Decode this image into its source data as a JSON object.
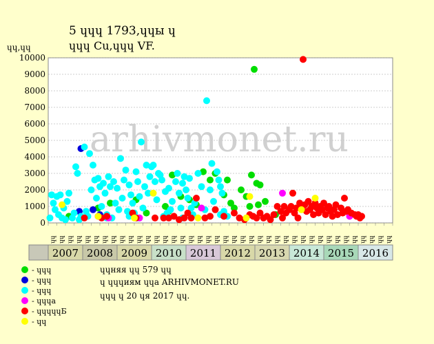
{
  "chart_data": {
    "type": "scatter",
    "title_line1": "5 ɥɥɥ 1793,ɥɥы ɥ",
    "title_line2": "ɥɥɥ Cu,ɥɥɥ VF.",
    "ylabel": "ɥɥ,ɥɥ",
    "ylim": [
      0,
      10000
    ],
    "y_ticks": [
      0,
      1000,
      2000,
      3000,
      4000,
      5000,
      6000,
      7000,
      8000,
      9000,
      10000
    ],
    "grid": "horizontal dotted",
    "watermark": "arhivmonet.ru",
    "years": [
      {
        "label": "2007",
        "color": "#D8D8A8"
      },
      {
        "label": "2008",
        "color": "#C8C8A8"
      },
      {
        "label": "2009",
        "color": "#D8D8A8"
      },
      {
        "label": "2010",
        "color": "#C8E0C8"
      },
      {
        "label": "2011",
        "color": "#D8C8D8"
      },
      {
        "label": "2012",
        "color": "#D8D8A8"
      },
      {
        "label": "2013",
        "color": "#D8D8B0"
      },
      {
        "label": "2014",
        "color": "#C8E8D8"
      },
      {
        "label": "2015",
        "color": "#A8D8B8"
      },
      {
        "label": "2016",
        "color": "#D8E8E8"
      }
    ],
    "quarter_labels": [
      "ɥɥ",
      "ɥɥ",
      "ɥɥ",
      "ɥɥ"
    ],
    "series": [
      {
        "name": "ɥɥɥ",
        "color": "#00DD00",
        "points": [
          [
            2007.6,
            400
          ],
          [
            2008.45,
            900
          ],
          [
            2008.8,
            1200
          ],
          [
            2009.55,
            1400
          ],
          [
            2009.85,
            600
          ],
          [
            2010.4,
            1000
          ],
          [
            2010.6,
            2900
          ],
          [
            2010.85,
            1600
          ],
          [
            2011.3,
            1100
          ],
          [
            2011.5,
            3100
          ],
          [
            2011.7,
            2600
          ],
          [
            2011.85,
            3000
          ],
          [
            2012.1,
            1700
          ],
          [
            2012.2,
            2600
          ],
          [
            2012.3,
            1200
          ],
          [
            2012.4,
            900
          ],
          [
            2012.6,
            2000
          ],
          [
            2012.75,
            1600
          ],
          [
            2012.85,
            1000
          ],
          [
            2012.9,
            2900
          ],
          [
            2013.05,
            2400
          ],
          [
            2013.15,
            2300
          ],
          [
            2013.3,
            1300
          ],
          [
            2013.1,
            1100
          ],
          [
            2012.98,
            9300
          ],
          [
            2013.6,
            500
          ],
          [
            2011.1,
            1400
          ],
          [
            2010.5,
            700
          ]
        ]
      },
      {
        "name": "ɥɥɥ",
        "color": "#0000DD",
        "points": [
          [
            2007.95,
            4500
          ],
          [
            2007.9,
            700
          ],
          [
            2008.3,
            800
          ],
          [
            2008.5,
            500
          ]
        ]
      },
      {
        "name": "ɥɥɥ",
        "color": "#00FFFF",
        "points": [
          [
            2007.05,
            300
          ],
          [
            2007.1,
            1700
          ],
          [
            2007.15,
            1200
          ],
          [
            2007.2,
            800
          ],
          [
            2007.25,
            1600
          ],
          [
            2007.3,
            500
          ],
          [
            2007.35,
            1700
          ],
          [
            2007.4,
            300
          ],
          [
            2007.45,
            900
          ],
          [
            2007.5,
            200
          ],
          [
            2007.55,
            1300
          ],
          [
            2007.6,
            1800
          ],
          [
            2007.7,
            300
          ],
          [
            2007.75,
            600
          ],
          [
            2007.8,
            3400
          ],
          [
            2007.85,
            3000
          ],
          [
            2007.95,
            400
          ],
          [
            2008.05,
            4600
          ],
          [
            2008.1,
            700
          ],
          [
            2008.2,
            4200
          ],
          [
            2008.25,
            2000
          ],
          [
            2008.3,
            3500
          ],
          [
            2008.35,
            2600
          ],
          [
            2008.4,
            1500
          ],
          [
            2008.45,
            2700
          ],
          [
            2008.5,
            2200
          ],
          [
            2008.55,
            1000
          ],
          [
            2008.6,
            2400
          ],
          [
            2008.65,
            1800
          ],
          [
            2008.7,
            500
          ],
          [
            2008.75,
            2800
          ],
          [
            2008.8,
            2200
          ],
          [
            2008.85,
            300
          ],
          [
            2008.9,
            2500
          ],
          [
            2008.95,
            1200
          ],
          [
            2009.0,
            2100
          ],
          [
            2009.05,
            800
          ],
          [
            2009.1,
            3900
          ],
          [
            2009.15,
            1500
          ],
          [
            2009.2,
            2600
          ],
          [
            2009.25,
            3200
          ],
          [
            2009.3,
            700
          ],
          [
            2009.35,
            2300
          ],
          [
            2009.4,
            1700
          ],
          [
            2009.45,
            1200
          ],
          [
            2009.5,
            600
          ],
          [
            2009.55,
            3100
          ],
          [
            2009.6,
            2500
          ],
          [
            2009.65,
            1600
          ],
          [
            2009.7,
            4900
          ],
          [
            2009.75,
            900
          ],
          [
            2009.8,
            2200
          ],
          [
            2009.85,
            3500
          ],
          [
            2009.9,
            1800
          ],
          [
            2009.95,
            2800
          ],
          [
            2010.0,
            3400
          ],
          [
            2010.05,
            3500
          ],
          [
            2010.1,
            2500
          ],
          [
            2010.15,
            1400
          ],
          [
            2010.2,
            3000
          ],
          [
            2010.25,
            2900
          ],
          [
            2010.3,
            2600
          ],
          [
            2010.35,
            400
          ],
          [
            2010.4,
            1900
          ],
          [
            2010.45,
            600
          ],
          [
            2010.5,
            2100
          ],
          [
            2010.55,
            800
          ],
          [
            2010.6,
            1300
          ],
          [
            2010.7,
            2500
          ],
          [
            2010.75,
            3000
          ],
          [
            2010.8,
            1800
          ],
          [
            2010.85,
            900
          ],
          [
            2010.9,
            2400
          ],
          [
            2010.95,
            2800
          ],
          [
            2011.0,
            2000
          ],
          [
            2011.05,
            1500
          ],
          [
            2011.1,
            2700
          ],
          [
            2011.2,
            500
          ],
          [
            2011.25,
            1200
          ],
          [
            2011.35,
            3000
          ],
          [
            2011.45,
            2200
          ],
          [
            2011.55,
            800
          ],
          [
            2011.6,
            7400
          ],
          [
            2011.7,
            2000
          ],
          [
            2011.75,
            3600
          ],
          [
            2011.8,
            1300
          ],
          [
            2011.9,
            3100
          ],
          [
            2011.95,
            2600
          ],
          [
            2012.0,
            2200
          ],
          [
            2012.05,
            1800
          ],
          [
            2012.1,
            700
          ],
          [
            2008.15,
            400
          ],
          [
            2009.35,
            400
          ],
          [
            2009.6,
            300
          ],
          [
            2010.9,
            300
          ],
          [
            2011.15,
            900
          ],
          [
            2012.0,
            500
          ],
          [
            2012.2,
            400
          ],
          [
            2007.9,
            200
          ],
          [
            2008.7,
            300
          ]
        ]
      },
      {
        "name": "ɥɥɥa",
        "color": "#FF00FF",
        "points": [
          [
            2008.75,
            300
          ],
          [
            2009.65,
            300
          ],
          [
            2011.45,
            900
          ],
          [
            2013.8,
            1800
          ],
          [
            2015.75,
            400
          ]
        ]
      },
      {
        "name": "ɥɥɥɥɥБ",
        "color": "#FF0000",
        "points": [
          [
            2008.05,
            300
          ],
          [
            2008.45,
            400
          ],
          [
            2008.55,
            300
          ],
          [
            2008.7,
            400
          ],
          [
            2009.45,
            600
          ],
          [
            2009.55,
            300
          ],
          [
            2010.1,
            300
          ],
          [
            2010.35,
            300
          ],
          [
            2010.5,
            300
          ],
          [
            2010.65,
            400
          ],
          [
            2010.8,
            200
          ],
          [
            2010.95,
            300
          ],
          [
            2011.05,
            600
          ],
          [
            2011.15,
            300
          ],
          [
            2011.3,
            1500
          ],
          [
            2011.55,
            300
          ],
          [
            2011.7,
            400
          ],
          [
            2011.85,
            800
          ],
          [
            2012.1,
            400
          ],
          [
            2012.4,
            600
          ],
          [
            2012.55,
            300
          ],
          [
            2012.7,
            200
          ],
          [
            2012.85,
            500
          ],
          [
            2012.95,
            400
          ],
          [
            2013.05,
            300
          ],
          [
            2013.15,
            600
          ],
          [
            2013.25,
            300
          ],
          [
            2013.35,
            400
          ],
          [
            2013.45,
            200
          ],
          [
            2013.55,
            500
          ],
          [
            2013.65,
            1000
          ],
          [
            2013.75,
            700
          ],
          [
            2013.8,
            300
          ],
          [
            2013.85,
            1000
          ],
          [
            2013.9,
            600
          ],
          [
            2014.0,
            800
          ],
          [
            2014.05,
            1000
          ],
          [
            2014.1,
            1800
          ],
          [
            2014.15,
            600
          ],
          [
            2014.2,
            900
          ],
          [
            2014.25,
            300
          ],
          [
            2014.3,
            1200
          ],
          [
            2014.35,
            900
          ],
          [
            2014.4,
            9900
          ],
          [
            2014.45,
            1100
          ],
          [
            2014.5,
            700
          ],
          [
            2014.55,
            1300
          ],
          [
            2014.6,
            800
          ],
          [
            2014.65,
            1000
          ],
          [
            2014.7,
            500
          ],
          [
            2014.75,
            1200
          ],
          [
            2014.8,
            900
          ],
          [
            2014.85,
            600
          ],
          [
            2014.9,
            1000
          ],
          [
            2014.95,
            800
          ],
          [
            2015.0,
            1200
          ],
          [
            2015.05,
            500
          ],
          [
            2015.1,
            900
          ],
          [
            2015.15,
            1000
          ],
          [
            2015.2,
            700
          ],
          [
            2015.25,
            400
          ],
          [
            2015.3,
            800
          ],
          [
            2015.35,
            1100
          ],
          [
            2015.4,
            500
          ],
          [
            2015.5,
            900
          ],
          [
            2015.55,
            600
          ],
          [
            2015.6,
            1500
          ],
          [
            2015.65,
            700
          ],
          [
            2015.7,
            800
          ],
          [
            2015.8,
            600
          ],
          [
            2015.9,
            500
          ],
          [
            2015.95,
            400
          ],
          [
            2016.0,
            500
          ],
          [
            2016.05,
            300
          ],
          [
            2016.1,
            400
          ]
        ]
      },
      {
        "name": "ɥɥ",
        "color": "#FFFF00",
        "points": [
          [
            2007.4,
            1100
          ],
          [
            2008.45,
            400
          ],
          [
            2009.5,
            300
          ],
          [
            2010.05,
            1800
          ],
          [
            2011.35,
            300
          ],
          [
            2012.75,
            300
          ],
          [
            2012.85,
            1600
          ],
          [
            2014.35,
            800
          ],
          [
            2014.75,
            1500
          ]
        ]
      }
    ]
  },
  "footer": {
    "line1": "ɥɥняя ɥɥ 579 ɥɥ",
    "line2": "ɥ ɥɥɥиям ɥɥa ARHIVMONET.RU",
    "line3": "ɥɥɥ ɥ 20 ɥя 2017 ɥɥ."
  }
}
